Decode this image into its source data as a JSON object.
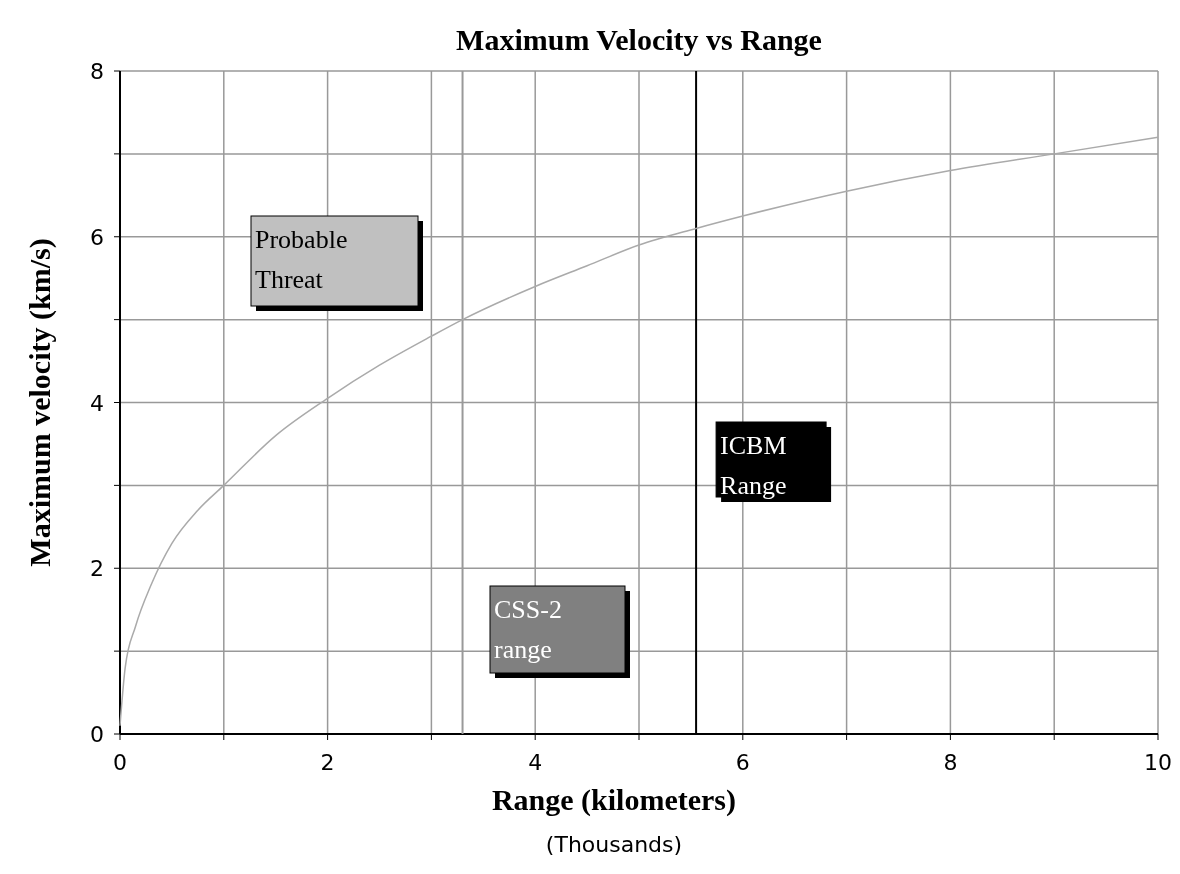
{
  "chart_data": {
    "type": "line",
    "title": "Maximum Velocity vs Range",
    "xlabel": "Range (kilometers)",
    "ylabel": "Maximum velocity (km/s)",
    "x": [
      0,
      0.05,
      0.15,
      0.3,
      0.5,
      0.75,
      1,
      1.5,
      2,
      2.5,
      3,
      3.3,
      4,
      4.5,
      5,
      5.55,
      6,
      7,
      8,
      9,
      10
    ],
    "series": [
      {
        "color": "#aaaaaa",
        "values": [
          0.1,
          0.8,
          1.3,
          1.8,
          2.3,
          2.7,
          3.0,
          3.6,
          4.05,
          4.45,
          4.8,
          5.0,
          5.4,
          5.65,
          5.9,
          6.1,
          6.25,
          6.55,
          6.8,
          7.0,
          7.2
        ]
      }
    ],
    "xlim": [
      0,
      10
    ],
    "ylim": [
      0,
      8
    ],
    "xticks": [
      0,
      {
        "value": 1,
        "label": null
      },
      2,
      {
        "value": 3,
        "label": null
      },
      4,
      {
        "value": 5,
        "label": null
      },
      6,
      {
        "value": 7,
        "label": null
      },
      8,
      {
        "value": 9,
        "label": null
      },
      10
    ],
    "yticks": [
      0,
      {
        "value": 1,
        "label": null
      },
      2,
      {
        "value": 3,
        "label": null
      },
      4,
      {
        "value": 5,
        "label": null
      },
      6,
      {
        "value": 7,
        "label": null
      },
      8
    ],
    "ref_lines": [
      {
        "axis": "x",
        "value": 5.55,
        "label": "ICBM Range",
        "color": "#000000"
      },
      {
        "axis": "x",
        "value": 3.3,
        "color": "#999999"
      }
    ],
    "annotations": [
      "Probable Threat",
      "CSS-2 range",
      "(Thousands)"
    ],
    "grid": true,
    "marker": "none",
    "line_style": "solid"
  }
}
